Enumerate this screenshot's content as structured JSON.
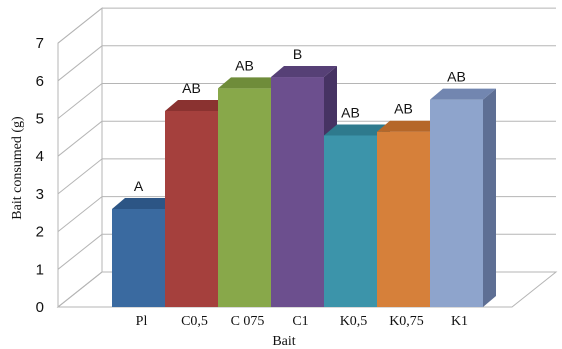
{
  "chart_data": {
    "type": "bar",
    "xlabel": "Bait",
    "ylabel": "Bait consumed (g)",
    "ylim": [
      0,
      7
    ],
    "yticks": [
      0,
      1,
      2,
      3,
      4,
      5,
      6,
      7
    ],
    "grid": true,
    "categories": [
      "Pl",
      "C0,5",
      "C 075",
      "C1",
      "K0,5",
      "K0,75",
      "K1"
    ],
    "values": [
      2.6,
      5.2,
      5.8,
      6.1,
      4.55,
      4.65,
      5.5
    ],
    "data_labels": [
      "A",
      "AB",
      "AB",
      "B",
      "AB",
      "AB",
      "AB"
    ],
    "colors": {
      "front": [
        "#3a6aa0",
        "#a5403d",
        "#88a84a",
        "#6c4f8e",
        "#3c94aa",
        "#d6803a",
        "#8ea4cc"
      ],
      "top": [
        "#2c5585",
        "#8a3230",
        "#6f8c3a",
        "#564076",
        "#2e7a8d",
        "#b56729",
        "#7286b0"
      ],
      "side": [
        "#244670",
        "#742927",
        "#5a7430",
        "#463363",
        "#256577",
        "#985721",
        "#5e6f94"
      ]
    }
  }
}
